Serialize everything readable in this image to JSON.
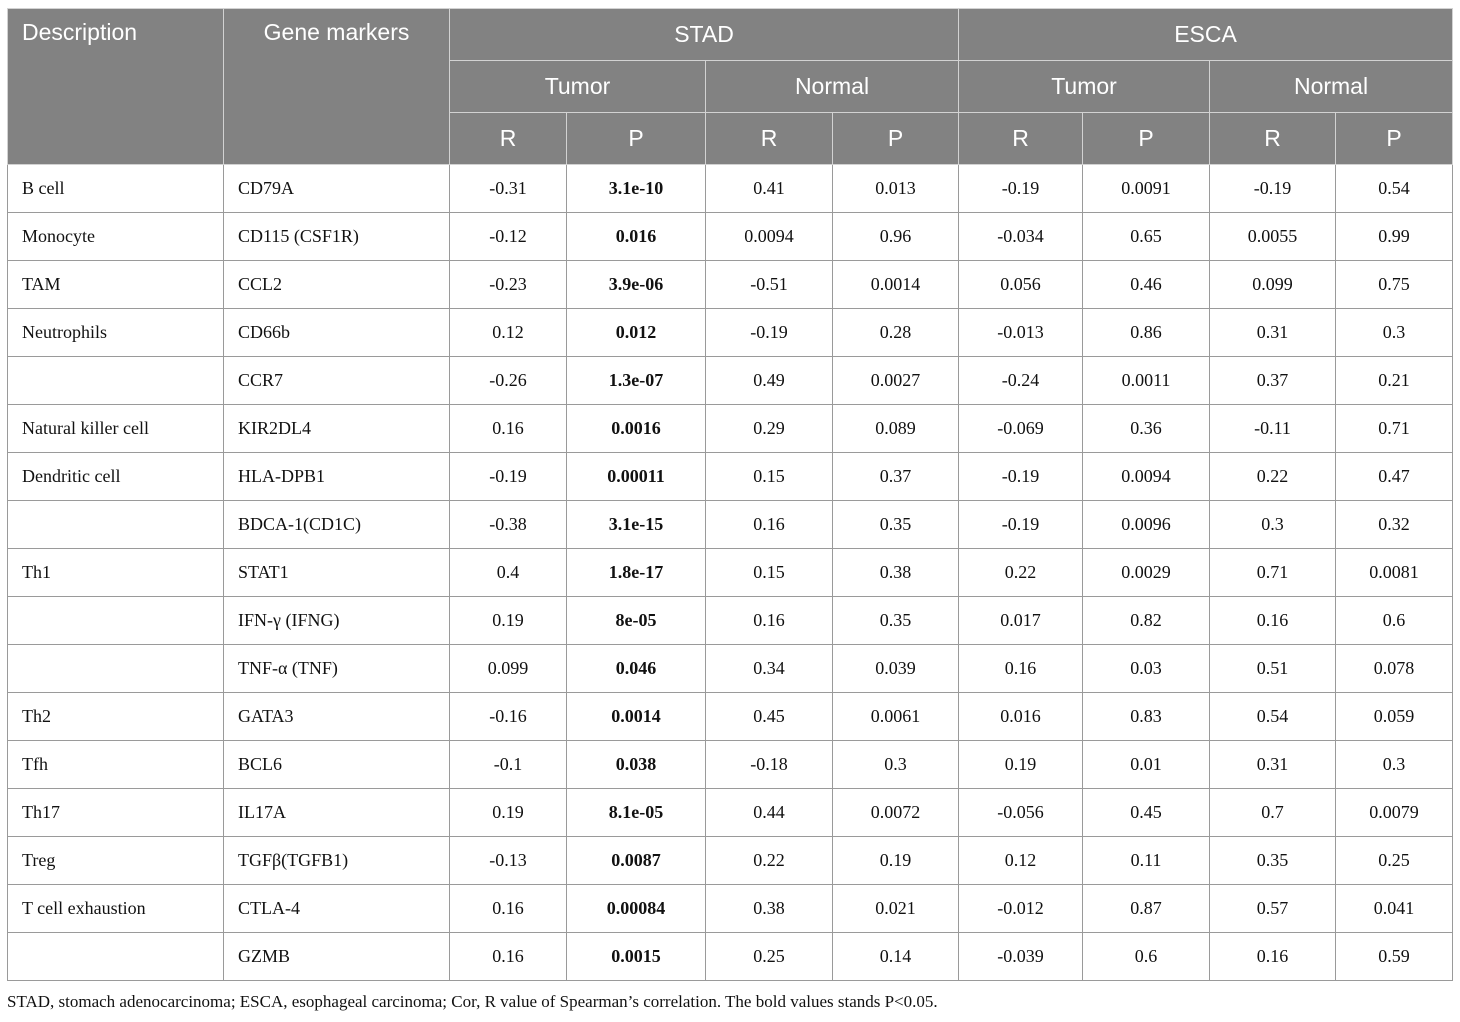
{
  "headers": {
    "description": "Description",
    "gene_markers": "Gene markers",
    "stad": "STAD",
    "esca": "ESCA",
    "tumor": "Tumor",
    "normal": "Normal",
    "r": "R",
    "p": "P"
  },
  "rows": [
    {
      "description": "B cell",
      "gene": "CD79A",
      "stad_tumor_r": "-0.31",
      "stad_tumor_p": "3.1e-10",
      "stad_normal_r": "0.41",
      "stad_normal_p": "0.013",
      "esca_tumor_r": "-0.19",
      "esca_tumor_p": "0.0091",
      "esca_normal_r": "-0.19",
      "esca_normal_p": "0.54"
    },
    {
      "description": "Monocyte",
      "gene": "CD115 (CSF1R)",
      "stad_tumor_r": "-0.12",
      "stad_tumor_p": "0.016",
      "stad_normal_r": "0.0094",
      "stad_normal_p": "0.96",
      "esca_tumor_r": "-0.034",
      "esca_tumor_p": "0.65",
      "esca_normal_r": "0.0055",
      "esca_normal_p": "0.99"
    },
    {
      "description": "TAM",
      "gene": "CCL2",
      "stad_tumor_r": "-0.23",
      "stad_tumor_p": "3.9e-06",
      "stad_normal_r": "-0.51",
      "stad_normal_p": "0.0014",
      "esca_tumor_r": "0.056",
      "esca_tumor_p": "0.46",
      "esca_normal_r": "0.099",
      "esca_normal_p": "0.75"
    },
    {
      "description": "Neutrophils",
      "gene": "CD66b",
      "stad_tumor_r": "0.12",
      "stad_tumor_p": "0.012",
      "stad_normal_r": "-0.19",
      "stad_normal_p": "0.28",
      "esca_tumor_r": "-0.013",
      "esca_tumor_p": "0.86",
      "esca_normal_r": "0.31",
      "esca_normal_p": "0.3"
    },
    {
      "description": "",
      "gene": "CCR7",
      "stad_tumor_r": "-0.26",
      "stad_tumor_p": "1.3e-07",
      "stad_normal_r": "0.49",
      "stad_normal_p": "0.0027",
      "esca_tumor_r": "-0.24",
      "esca_tumor_p": "0.0011",
      "esca_normal_r": "0.37",
      "esca_normal_p": "0.21"
    },
    {
      "description": "Natural killer cell",
      "gene": "KIR2DL4",
      "stad_tumor_r": "0.16",
      "stad_tumor_p": "0.0016",
      "stad_normal_r": "0.29",
      "stad_normal_p": "0.089",
      "esca_tumor_r": "-0.069",
      "esca_tumor_p": "0.36",
      "esca_normal_r": "-0.11",
      "esca_normal_p": "0.71"
    },
    {
      "description": "Dendritic cell",
      "gene": "HLA-DPB1",
      "stad_tumor_r": "-0.19",
      "stad_tumor_p": "0.00011",
      "stad_normal_r": "0.15",
      "stad_normal_p": "0.37",
      "esca_tumor_r": "-0.19",
      "esca_tumor_p": "0.0094",
      "esca_normal_r": "0.22",
      "esca_normal_p": "0.47"
    },
    {
      "description": "",
      "gene": "BDCA-1(CD1C)",
      "stad_tumor_r": "-0.38",
      "stad_tumor_p": "3.1e-15",
      "stad_normal_r": "0.16",
      "stad_normal_p": "0.35",
      "esca_tumor_r": "-0.19",
      "esca_tumor_p": "0.0096",
      "esca_normal_r": "0.3",
      "esca_normal_p": "0.32"
    },
    {
      "description": "Th1",
      "gene": "STAT1",
      "stad_tumor_r": "0.4",
      "stad_tumor_p": "1.8e-17",
      "stad_normal_r": "0.15",
      "stad_normal_p": "0.38",
      "esca_tumor_r": "0.22",
      "esca_tumor_p": "0.0029",
      "esca_normal_r": "0.71",
      "esca_normal_p": "0.0081"
    },
    {
      "description": "",
      "gene": "IFN-γ (IFNG)",
      "stad_tumor_r": "0.19",
      "stad_tumor_p": "8e-05",
      "stad_normal_r": "0.16",
      "stad_normal_p": "0.35",
      "esca_tumor_r": "0.017",
      "esca_tumor_p": "0.82",
      "esca_normal_r": "0.16",
      "esca_normal_p": "0.6"
    },
    {
      "description": "",
      "gene": "TNF-α (TNF)",
      "stad_tumor_r": "0.099",
      "stad_tumor_p": "0.046",
      "stad_normal_r": "0.34",
      "stad_normal_p": "0.039",
      "esca_tumor_r": "0.16",
      "esca_tumor_p": "0.03",
      "esca_normal_r": "0.51",
      "esca_normal_p": "0.078"
    },
    {
      "description": "Th2",
      "gene": "GATA3",
      "stad_tumor_r": "-0.16",
      "stad_tumor_p": "0.0014",
      "stad_normal_r": "0.45",
      "stad_normal_p": "0.0061",
      "esca_tumor_r": "0.016",
      "esca_tumor_p": "0.83",
      "esca_normal_r": "0.54",
      "esca_normal_p": "0.059"
    },
    {
      "description": "Tfh",
      "gene": "BCL6",
      "stad_tumor_r": "-0.1",
      "stad_tumor_p": "0.038",
      "stad_normal_r": "-0.18",
      "stad_normal_p": "0.3",
      "esca_tumor_r": "0.19",
      "esca_tumor_p": "0.01",
      "esca_normal_r": "0.31",
      "esca_normal_p": "0.3"
    },
    {
      "description": "Th17",
      "gene": "IL17A",
      "stad_tumor_r": "0.19",
      "stad_tumor_p": "8.1e-05",
      "stad_normal_r": "0.44",
      "stad_normal_p": "0.0072",
      "esca_tumor_r": "-0.056",
      "esca_tumor_p": "0.45",
      "esca_normal_r": "0.7",
      "esca_normal_p": "0.0079"
    },
    {
      "description": "Treg",
      "gene": "TGFβ(TGFB1)",
      "stad_tumor_r": "-0.13",
      "stad_tumor_p": "0.0087",
      "stad_normal_r": "0.22",
      "stad_normal_p": "0.19",
      "esca_tumor_r": "0.12",
      "esca_tumor_p": "0.11",
      "esca_normal_r": "0.35",
      "esca_normal_p": "0.25"
    },
    {
      "description": "T cell exhaustion",
      "gene": "CTLA-4",
      "stad_tumor_r": "0.16",
      "stad_tumor_p": "0.00084",
      "stad_normal_r": "0.38",
      "stad_normal_p": "0.021",
      "esca_tumor_r": "-0.012",
      "esca_tumor_p": "0.87",
      "esca_normal_r": "0.57",
      "esca_normal_p": "0.041"
    },
    {
      "description": "",
      "gene": "GZMB",
      "stad_tumor_r": "0.16",
      "stad_tumor_p": "0.0015",
      "stad_normal_r": "0.25",
      "stad_normal_p": "0.14",
      "esca_tumor_r": "-0.039",
      "esca_tumor_p": "0.6",
      "esca_normal_r": "0.16",
      "esca_normal_p": "0.59"
    }
  ],
  "footnote": "STAD, stomach adenocarcinoma; ESCA, esophageal carcinoma; Cor, R value of Spearman’s correlation. The bold values stands P<0.05."
}
